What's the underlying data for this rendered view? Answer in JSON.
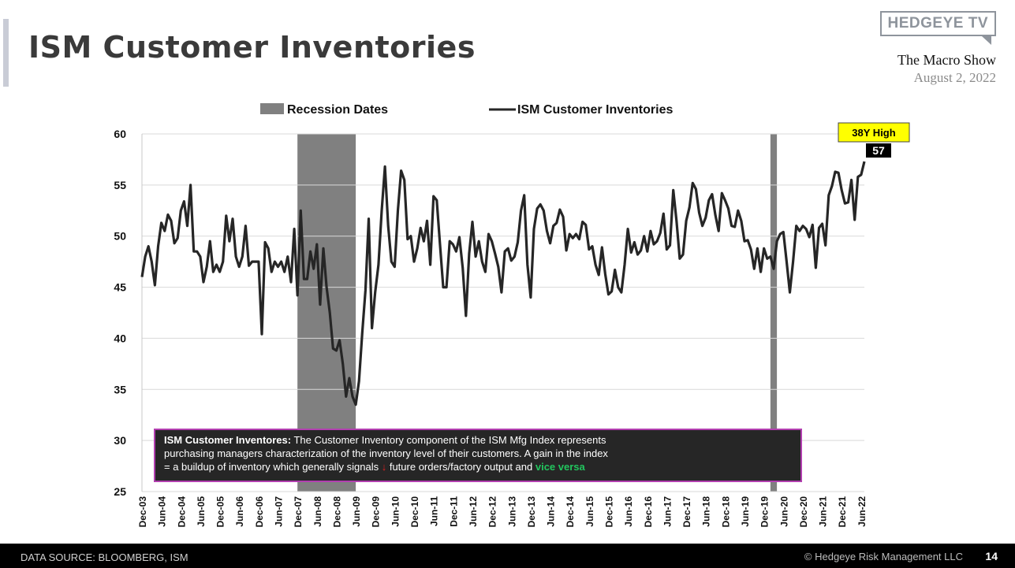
{
  "header": {
    "title": "ISM Customer Inventories",
    "brand": "HEDGEYE TV",
    "show_name": "The Macro Show",
    "show_date": "August 2, 2022"
  },
  "footer": {
    "source": "DATA SOURCE: BLOOMBERG, ISM",
    "copyright": "© Hedgeye Risk Management LLC",
    "page": "14"
  },
  "chart_data": {
    "type": "line",
    "title": "",
    "xlabel": "",
    "ylabel": "",
    "ylim": [
      25,
      60
    ],
    "yticks": [
      25,
      30,
      35,
      40,
      45,
      50,
      55,
      60
    ],
    "x_ticks": [
      "Dec-03",
      "Jun-04",
      "Dec-04",
      "Jun-05",
      "Dec-05",
      "Jun-06",
      "Dec-06",
      "Jun-07",
      "Dec-07",
      "Jun-08",
      "Dec-08",
      "Jun-09",
      "Dec-09",
      "Jun-10",
      "Dec-10",
      "Jun-11",
      "Dec-11",
      "Jun-12",
      "Dec-12",
      "Jun-13",
      "Dec-13",
      "Jun-14",
      "Dec-14",
      "Jun-15",
      "Dec-15",
      "Jun-16",
      "Dec-16",
      "Jun-17",
      "Dec-17",
      "Jun-18",
      "Dec-18",
      "Jun-19",
      "Dec-19",
      "Jun-20",
      "Dec-20",
      "Jun-21",
      "Dec-21",
      "Jun-22"
    ],
    "grid": true,
    "legend": {
      "position": "top",
      "entries": [
        {
          "label": "Recession Dates",
          "type": "band",
          "color": "#808080"
        },
        {
          "label": "ISM Customer Inventories",
          "type": "line",
          "color": "#262626"
        }
      ]
    },
    "recessions": [
      {
        "start": "Dec-07",
        "end": "Jun-09"
      },
      {
        "start": "Feb-20",
        "end": "Apr-20"
      }
    ],
    "series": [
      {
        "name": "ISM Customer Inventories",
        "start": "Dec-03",
        "frequency": "monthly",
        "values": [
          46.0,
          48.0,
          49.0,
          47.5,
          45.2,
          49.0,
          51.3,
          50.5,
          52.1,
          51.5,
          49.3,
          49.8,
          52.5,
          53.4,
          51.0,
          55.0,
          48.5,
          48.5,
          48.0,
          45.5,
          47.0,
          49.5,
          46.5,
          47.2,
          46.5,
          47.5,
          52.0,
          49.5,
          51.7,
          48.0,
          47.0,
          48.0,
          51.0,
          47.1,
          47.5,
          47.5,
          47.5,
          40.4,
          49.4,
          48.8,
          46.5,
          47.5,
          47.0,
          47.5,
          46.5,
          48.0,
          45.5,
          50.7,
          44.2,
          52.5,
          45.8,
          45.8,
          48.5,
          46.8,
          49.2,
          43.3,
          48.8,
          45.0,
          42.5,
          39.0,
          38.8,
          39.8,
          37.5,
          34.3,
          36.1,
          34.3,
          33.5,
          35.8,
          40.5,
          44.7,
          51.7,
          41.0,
          44.5,
          47.2,
          52.5,
          56.8,
          51.0,
          47.5,
          47.0,
          52.5,
          56.4,
          55.5,
          49.7,
          50.0,
          47.5,
          48.8,
          50.8,
          49.5,
          51.5,
          47.2,
          53.9,
          53.5,
          49.2,
          45.0,
          45.0,
          49.5,
          49.2,
          48.5,
          49.9,
          46.9,
          42.2,
          48.3,
          51.4,
          48.0,
          49.5,
          47.5,
          46.5,
          50.2,
          49.5,
          48.3,
          47.0,
          44.5,
          48.5,
          48.8,
          47.6,
          48.0,
          49.4,
          52.5,
          54.0,
          47.2,
          44.0,
          50.7,
          52.7,
          53.1,
          52.5,
          50.5,
          49.3,
          51.0,
          51.3,
          52.6,
          51.9,
          48.6,
          50.2,
          49.8,
          50.2,
          49.7,
          51.4,
          51.1,
          48.7,
          49.0,
          47.2,
          46.2,
          48.9,
          46.3,
          44.3,
          44.6,
          46.7,
          45.0,
          44.5,
          47.2,
          50.7,
          48.4,
          49.4,
          48.2,
          48.6,
          50.0,
          48.5,
          50.5,
          49.2,
          49.5,
          50.3,
          52.2,
          48.7,
          49.1,
          54.5,
          51.5,
          47.8,
          48.2,
          51.5,
          52.8,
          55.2,
          54.6,
          52.3,
          51.0,
          51.8,
          53.5,
          54.1,
          52.1,
          50.5,
          54.2,
          53.5,
          52.7,
          51.0,
          50.9,
          52.5,
          51.5,
          49.5,
          49.6,
          48.7,
          46.8,
          48.8,
          46.5,
          48.8,
          47.8,
          48.0,
          46.8,
          49.5,
          50.2,
          50.4,
          47.5,
          44.5,
          47.5,
          51.0,
          50.5,
          51.0,
          50.7,
          49.9,
          51.1,
          46.9,
          50.8,
          51.2,
          49.1,
          54.0,
          54.9,
          56.3,
          56.2,
          54.5,
          53.2,
          53.3,
          55.5,
          51.6,
          55.8,
          56.0,
          57.3
        ]
      }
    ],
    "annotations": {
      "callout_label": "38Y High",
      "callout_value": "57",
      "note_title": "ISM Customer Inventores:",
      "note_line1": "The Customer Inventory component of the ISM Mfg Index represents",
      "note_line2": "purchasing managers characterization of the inventory level of their customers.  A gain in the index",
      "note_line3_a": "= a buildup of inventory which generally signals",
      "note_arrow": "↓",
      "note_line3_b": "future orders/factory output and",
      "note_line3_c": "vice versa"
    }
  }
}
